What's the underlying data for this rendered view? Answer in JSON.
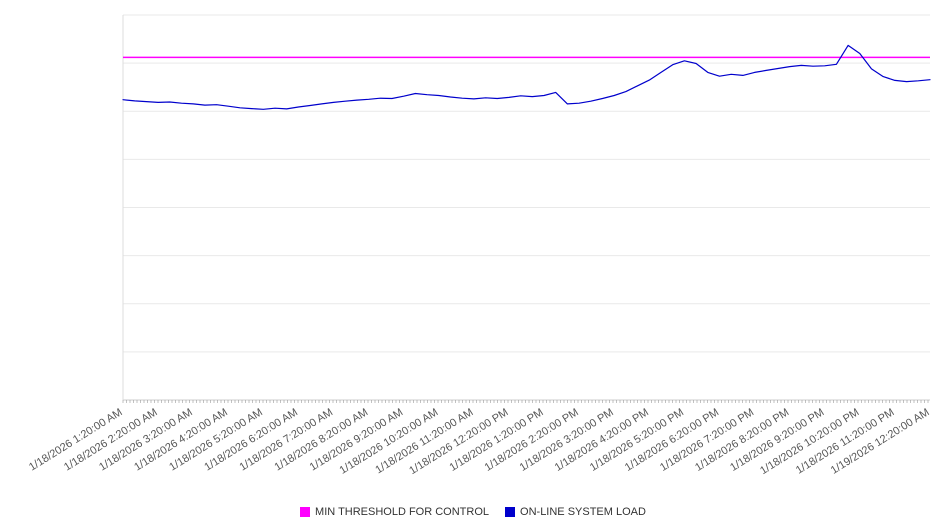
{
  "chart_data": {
    "type": "line",
    "title": "",
    "xlabel": "",
    "ylabel": "",
    "ylim": [
      0,
      100
    ],
    "grid": {
      "horizontal": true,
      "interval": 12.5,
      "vertical": false
    },
    "legend_position": "bottom-center",
    "x_labels": [
      "1/18/2026 1:20:00 AM",
      "1/18/2026 2:20:00 AM",
      "1/18/2026 3:20:00 AM",
      "1/18/2026 4:20:00 AM",
      "1/18/2026 5:20:00 AM",
      "1/18/2026 6:20:00 AM",
      "1/18/2026 7:20:00 AM",
      "1/18/2026 8:20:00 AM",
      "1/18/2026 9:20:00 AM",
      "1/18/2026 10:20:00 AM",
      "1/18/2026 11:20:00 AM",
      "1/18/2026 12:20:00 PM",
      "1/18/2026 1:20:00 PM",
      "1/18/2026 2:20:00 PM",
      "1/18/2026 3:20:00 PM",
      "1/18/2026 4:20:00 PM",
      "1/18/2026 5:20:00 PM",
      "1/18/2026 6:20:00 PM",
      "1/18/2026 7:20:00 PM",
      "1/18/2026 8:20:00 PM",
      "1/18/2026 9:20:00 PM",
      "1/18/2026 10:20:00 PM",
      "1/18/2026 11:20:00 PM",
      "1/19/2026 12:20:00 AM"
    ],
    "series": [
      {
        "name": "MIN THRESHOLD FOR CONTROL",
        "color": "#ff00ff",
        "type": "threshold",
        "value": 89
      },
      {
        "name": "ON-LINE SYSTEM LOAD",
        "color": "#0000cc",
        "type": "line",
        "points_per_label_interval": 3,
        "values": [
          78.0,
          77.7,
          77.5,
          77.3,
          77.4,
          77.1,
          76.9,
          76.6,
          76.7,
          76.3,
          75.9,
          75.7,
          75.5,
          75.8,
          75.6,
          76.1,
          76.5,
          76.9,
          77.3,
          77.6,
          77.9,
          78.1,
          78.4,
          78.3,
          78.9,
          79.6,
          79.3,
          79.1,
          78.7,
          78.4,
          78.2,
          78.5,
          78.3,
          78.6,
          79.0,
          78.8,
          79.1,
          79.9,
          76.9,
          77.1,
          77.6,
          78.3,
          79.1,
          80.1,
          81.6,
          83.1,
          85.1,
          87.1,
          88.1,
          87.4,
          85.1,
          84.1,
          84.6,
          84.3,
          85.1,
          85.6,
          86.1,
          86.6,
          86.9,
          86.7,
          86.8,
          87.2,
          92.1,
          90.0,
          86.0,
          84.0,
          83.0,
          82.7,
          82.9,
          83.2
        ]
      }
    ]
  },
  "legend": {
    "items": [
      {
        "label": "MIN THRESHOLD FOR CONTROL",
        "color": "#ff00ff"
      },
      {
        "label": "ON-LINE SYSTEM LOAD",
        "color": "#0000cc"
      }
    ]
  }
}
